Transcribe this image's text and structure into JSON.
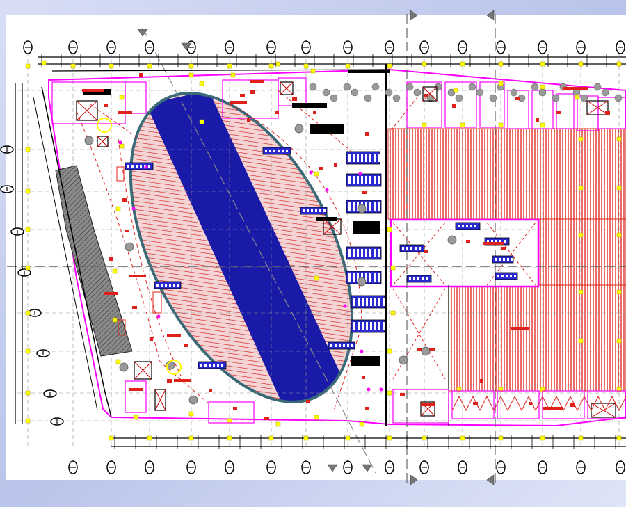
{
  "colors": {
    "background": "#ffffff",
    "frame_light": "#c9d3ef",
    "frame_dark": "#9aa8d6",
    "drawing_black": "#000000",
    "hatch_red": "#e0201a",
    "boundary_magenta": "#ff00ff",
    "ellipse_blue": "#1a1aa8",
    "ellipse_outline": "#3a6a78",
    "marker_yellow": "#ffff00",
    "gray_fill": "#777777",
    "grid_gray": "#909090"
  },
  "drawing": {
    "type": "architectural floor plan",
    "grid_bubbles_top_count": 17,
    "grid_bubbles_bottom_count": 15,
    "grid_bubbles_left_count": 9
  }
}
